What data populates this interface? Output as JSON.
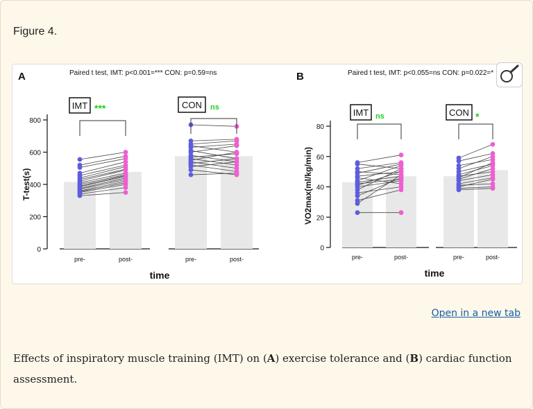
{
  "figure_label": "Figure 4.",
  "open_tab_label": "Open in a new tab",
  "caption": {
    "part1": "Effects of inspiratory muscle training (IMT) on (",
    "labelA": "A",
    "part2": ") exercise tolerance and (",
    "labelB": "B",
    "part3": ") cardiac function assessment."
  },
  "colors": {
    "pre": "#5d5ddd",
    "post": "#ee5fd0",
    "sig": "#22cc22",
    "bar": "#e8e8e8"
  },
  "icons": {
    "magnifier": "magnifier-icon"
  },
  "chart_data": [
    {
      "type": "bar",
      "panel": "A",
      "header": "Paired t test, IMT: p<0.001=*** CON: p=0.59=ns",
      "xlabel": "time",
      "ylabel": "T-test(s)",
      "ylim": [
        0,
        800
      ],
      "yticks": [
        0,
        200,
        400,
        600,
        800
      ],
      "categories": [
        "pre-",
        "post-",
        "pre-",
        "post-"
      ],
      "groups": [
        {
          "name": "IMT",
          "significance": "***",
          "pre_mean": 415,
          "post_mean": 478,
          "pairs": [
            [
              555,
              600
            ],
            [
              520,
              575
            ],
            [
              505,
              560
            ],
            [
              470,
              540
            ],
            [
              455,
              520
            ],
            [
              440,
              510
            ],
            [
              430,
              495
            ],
            [
              420,
              490
            ],
            [
              410,
              470
            ],
            [
              400,
              460
            ],
            [
              390,
              455
            ],
            [
              385,
              450
            ],
            [
              375,
              440
            ],
            [
              370,
              430
            ],
            [
              360,
              420
            ],
            [
              355,
              410
            ],
            [
              350,
              400
            ],
            [
              340,
              380
            ],
            [
              330,
              350
            ]
          ]
        },
        {
          "name": "CON",
          "significance": "ns",
          "pre_mean": 575,
          "post_mean": 575,
          "pairs": [
            [
              770,
              760
            ],
            [
              670,
              680
            ],
            [
              650,
              670
            ],
            [
              640,
              600
            ],
            [
              630,
              650
            ],
            [
              610,
              560
            ],
            [
              600,
              640
            ],
            [
              580,
              540
            ],
            [
              570,
              590
            ],
            [
              560,
              520
            ],
            [
              550,
              600
            ],
            [
              540,
              500
            ],
            [
              530,
              560
            ],
            [
              520,
              480
            ],
            [
              510,
              540
            ],
            [
              490,
              460
            ],
            [
              460,
              470
            ]
          ]
        }
      ]
    },
    {
      "type": "bar",
      "panel": "B",
      "header": "Paired t test, IMT: p<0.055=ns CON: p=0.022=*",
      "xlabel": "time",
      "ylabel": "VO2max(ml/kg/min)",
      "ylim": [
        0,
        80
      ],
      "yticks": [
        0,
        20,
        40,
        60,
        80
      ],
      "categories": [
        "pre-",
        "post-",
        "pre-",
        "post-"
      ],
      "groups": [
        {
          "name": "IMT",
          "significance": "ns",
          "pre_mean": 43,
          "post_mean": 47,
          "pairs": [
            [
              56,
              61
            ],
            [
              55,
              52
            ],
            [
              52,
              56
            ],
            [
              50,
              48
            ],
            [
              49,
              55
            ],
            [
              47,
              50
            ],
            [
              46,
              42
            ],
            [
              44,
              54
            ],
            [
              43,
              47
            ],
            [
              42,
              45
            ],
            [
              41,
              50
            ],
            [
              40,
              44
            ],
            [
              38,
              52
            ],
            [
              36,
              40
            ],
            [
              34,
              46
            ],
            [
              31,
              38
            ],
            [
              29,
              48
            ],
            [
              23,
              23
            ]
          ]
        },
        {
          "name": "CON",
          "significance": "*",
          "pre_mean": 47,
          "post_mean": 51,
          "pairs": [
            [
              59,
              68
            ],
            [
              57,
              62
            ],
            [
              54,
              58
            ],
            [
              52,
              60
            ],
            [
              50,
              55
            ],
            [
              48,
              54
            ],
            [
              47,
              50
            ],
            [
              46,
              56
            ],
            [
              45,
              52
            ],
            [
              44,
              48
            ],
            [
              42,
              46
            ],
            [
              41,
              42
            ],
            [
              40,
              45
            ],
            [
              39,
              40
            ],
            [
              38,
              39
            ]
          ]
        }
      ]
    }
  ]
}
